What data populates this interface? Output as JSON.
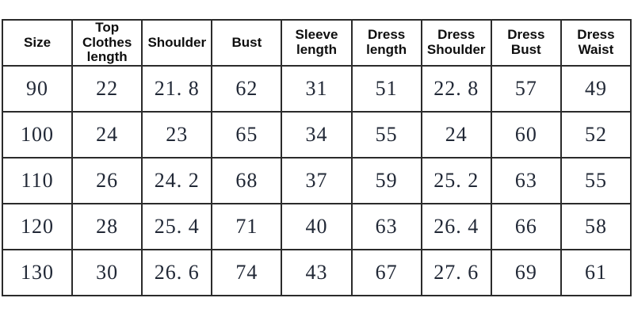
{
  "chart_data": {
    "type": "table",
    "columns": [
      "Size",
      "Top Clothes length",
      "Shoulder",
      "Bust",
      "Sleeve length",
      "Dress length",
      "Dress Shoulder",
      "Dress Bust",
      "Dress Waist"
    ],
    "rows": [
      [
        "90",
        "22",
        "21. 8",
        "62",
        "31",
        "51",
        "22. 8",
        "57",
        "49"
      ],
      [
        "100",
        "24",
        "23",
        "65",
        "34",
        "55",
        "24",
        "60",
        "52"
      ],
      [
        "110",
        "26",
        "24. 2",
        "68",
        "37",
        "59",
        "25. 2",
        "63",
        "55"
      ],
      [
        "120",
        "28",
        "25. 4",
        "71",
        "40",
        "63",
        "26. 4",
        "66",
        "58"
      ],
      [
        "130",
        "30",
        "26. 6",
        "74",
        "43",
        "67",
        "27. 6",
        "69",
        "61"
      ]
    ],
    "layout": {
      "grid": "on",
      "header_row": true,
      "background": "#ffffff",
      "border_color": "#2b2b2b",
      "header_text_color": "#0e0e0e",
      "cell_text_color": "#212836"
    }
  }
}
